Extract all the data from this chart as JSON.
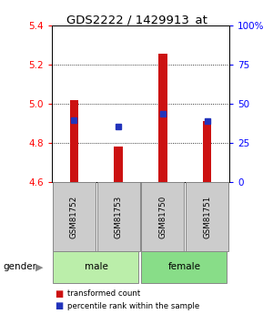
{
  "title": "GDS2222 / 1429913_at",
  "samples": [
    "GSM81752",
    "GSM81753",
    "GSM81750",
    "GSM81751"
  ],
  "gender": [
    "male",
    "male",
    "female",
    "female"
  ],
  "red_values": [
    5.02,
    4.78,
    5.255,
    4.91
  ],
  "blue_values": [
    4.917,
    4.883,
    4.95,
    4.91
  ],
  "ymin": 4.6,
  "ymax": 5.4,
  "yticks_left": [
    4.6,
    4.8,
    5.0,
    5.2,
    5.4
  ],
  "yticks_right": [
    0,
    25,
    50,
    75,
    100
  ],
  "yticks_right_labels": [
    "0",
    "25",
    "50",
    "75",
    "100%"
  ],
  "bar_color": "#CC1111",
  "blue_color": "#2233BB",
  "male_color": "#BBEEAA",
  "female_color": "#88DD88",
  "label_bg_color": "#CCCCCC",
  "background_color": "#FFFFFF",
  "bar_width": 0.2
}
